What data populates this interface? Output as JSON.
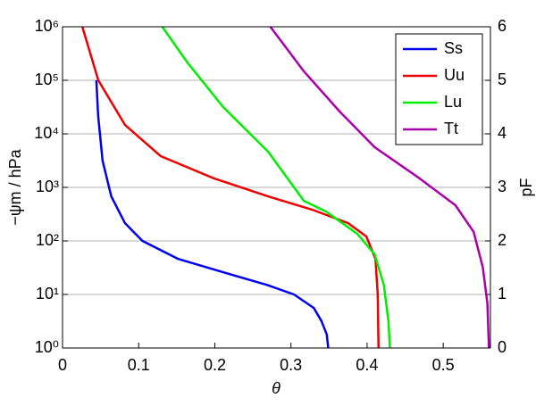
{
  "chart_data": {
    "type": "line",
    "xlabel": "θ",
    "ylabel": "−ψm / hPa",
    "y2label": "pF",
    "xlim": [
      0,
      0.562
    ],
    "xticks": [
      0,
      0.1,
      0.2,
      0.3,
      0.4,
      0.5
    ],
    "ylim": [
      1,
      1000000
    ],
    "log_y": true,
    "yticks": [
      {
        "value": 1,
        "label": "10⁰"
      },
      {
        "value": 10,
        "label": "10¹"
      },
      {
        "value": 100,
        "label": "10²"
      },
      {
        "value": 1000,
        "label": "10³"
      },
      {
        "value": 10000,
        "label": "10⁴"
      },
      {
        "value": 100000,
        "label": "10⁵"
      },
      {
        "value": 1000000,
        "label": "10⁶"
      }
    ],
    "y2lim": [
      0,
      6
    ],
    "y2ticks": [
      0,
      1,
      2,
      3,
      4,
      5,
      6
    ],
    "grid": true,
    "legend": "upper right",
    "series": [
      {
        "name": "Ss",
        "color": "#0000ee",
        "x": [
          0.0444,
          0.0468,
          0.0526,
          0.064,
          0.082,
          0.105,
          0.152,
          0.211,
          0.269,
          0.304,
          0.33,
          0.34,
          0.347,
          0.349
        ],
        "values": [
          100000,
          21500,
          3160,
          680,
          215,
          100,
          46,
          26,
          15,
          10,
          5.6,
          3.2,
          1.8,
          1
        ]
      },
      {
        "name": "Uu",
        "color": "#ee0000",
        "x": [
          0.026,
          0.047,
          0.082,
          0.129,
          0.199,
          0.27,
          0.328,
          0.375,
          0.399,
          0.411,
          0.414,
          0.415
        ],
        "values": [
          1000000,
          100000,
          14700,
          3830,
          1470,
          680,
          383,
          215,
          121,
          46,
          10,
          1
        ]
      },
      {
        "name": "Lu",
        "color": "#00ee00",
        "x": [
          0.131,
          0.164,
          0.211,
          0.27,
          0.317,
          0.346,
          0.387,
          0.41,
          0.422,
          0.428,
          0.43
        ],
        "values": [
          1000000,
          215000,
          31600,
          4640,
          560,
          355,
          136,
          56,
          15,
          3.2,
          1
        ]
      },
      {
        "name": "Tt",
        "color": "#aa00aa",
        "x": [
          0.273,
          0.317,
          0.364,
          0.41,
          0.469,
          0.516,
          0.54,
          0.552,
          0.558,
          0.56
        ],
        "values": [
          1000000,
          147000,
          26100,
          5620,
          1470,
          464,
          147,
          32,
          6.8,
          1
        ]
      }
    ]
  }
}
